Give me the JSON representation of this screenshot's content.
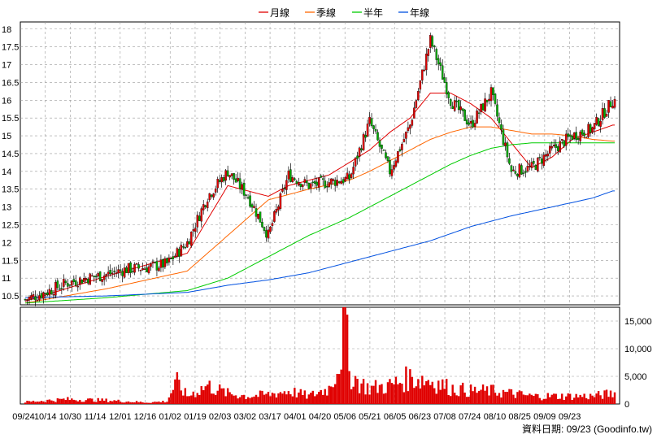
{
  "legend": [
    {
      "label": "月線",
      "color": "#e00000"
    },
    {
      "label": "季線",
      "color": "#ff6600"
    },
    {
      "label": "半年",
      "color": "#00cc00"
    },
    {
      "label": "年線",
      "color": "#0050e0"
    }
  ],
  "credit": "資料日期: 09/23  (Goodinfo.tw)",
  "chart_data": [
    {
      "type": "candlestick",
      "ylim": [
        10.25,
        18.2
      ],
      "y_ticks": [
        "18",
        "17.5",
        "17",
        "16.5",
        "16",
        "15.5",
        "15",
        "14.5",
        "14",
        "13.5",
        "13",
        "12.5",
        "12",
        "11.5",
        "11",
        "10.5"
      ],
      "x_ticks": [
        "09/24",
        "10/14",
        "10/30",
        "11/14",
        "12/01",
        "12/16",
        "01/02",
        "01/19",
        "02/03",
        "03/02",
        "03/17",
        "04/01",
        "04/20",
        "05/06",
        "05/21",
        "06/05",
        "06/23",
        "07/08",
        "07/24",
        "08/10",
        "08/25",
        "09/09",
        "09/23"
      ],
      "up_color": "#e00000",
      "down_color": "#00aa00",
      "price_anchor_index": [
        0,
        10,
        20,
        30,
        40,
        50,
        60,
        70,
        80,
        90,
        100,
        110,
        120,
        130,
        140,
        150,
        160,
        170,
        180,
        190,
        200,
        210,
        220,
        230,
        240
      ],
      "price_anchor_close": [
        10.4,
        10.6,
        10.85,
        11.0,
        11.1,
        11.25,
        11.3,
        11.4,
        12.0,
        13.3,
        14.0,
        13.3,
        12.2,
        13.9,
        13.6,
        13.7,
        13.8,
        15.4,
        14.0,
        15.3,
        17.7,
        16.0,
        15.3,
        16.2,
        14.0
      ],
      "price_anchor_index_2": [
        250,
        260,
        270,
        280,
        290
      ],
      "price_anchor_close_2": [
        14.1,
        14.6,
        15.0,
        15.2,
        16.0
      ],
      "ma_series": [
        {
          "name": "月線",
          "x": [
            0,
            40,
            80,
            100,
            120,
            130,
            150,
            170,
            180,
            190,
            200,
            210,
            220,
            230,
            240,
            250,
            260,
            270,
            280,
            290
          ],
          "y": [
            10.35,
            11.05,
            11.7,
            13.6,
            13.3,
            13.6,
            13.9,
            14.6,
            15.1,
            15.5,
            16.2,
            16.2,
            15.9,
            15.5,
            14.8,
            14.1,
            14.4,
            14.9,
            15.1,
            15.3
          ]
        },
        {
          "name": "季線",
          "x": [
            0,
            40,
            80,
            100,
            120,
            140,
            160,
            170,
            180,
            200,
            210,
            220,
            230,
            240,
            250,
            260,
            270,
            280,
            290
          ],
          "y": [
            10.3,
            10.7,
            11.2,
            12.2,
            13.2,
            13.5,
            13.75,
            14.0,
            14.3,
            14.9,
            15.1,
            15.25,
            15.25,
            15.15,
            15.05,
            15.05,
            15.0,
            14.9,
            14.85
          ]
        },
        {
          "name": "半年",
          "x": [
            0,
            40,
            80,
            100,
            120,
            140,
            160,
            180,
            200,
            210,
            220,
            230,
            240,
            250,
            260,
            270,
            280,
            290
          ],
          "y": [
            10.3,
            10.45,
            10.65,
            11.0,
            11.6,
            12.2,
            12.7,
            13.3,
            13.9,
            14.2,
            14.45,
            14.65,
            14.75,
            14.8,
            14.8,
            14.8,
            14.8,
            14.8
          ]
        },
        {
          "name": "年線",
          "x": [
            0,
            40,
            80,
            100,
            120,
            140,
            160,
            180,
            200,
            220,
            240,
            260,
            280,
            290
          ],
          "y": [
            10.45,
            10.5,
            10.6,
            10.8,
            10.95,
            11.15,
            11.45,
            11.75,
            12.05,
            12.45,
            12.75,
            13.0,
            13.25,
            13.45
          ]
        }
      ]
    },
    {
      "type": "bar",
      "ylim": [
        0,
        17500
      ],
      "y_ticks": [
        "15,000",
        "10,000",
        "5,000",
        "0"
      ],
      "y_values": [
        15000,
        10000,
        5000,
        0
      ],
      "color": "#e00000",
      "volume_anchor_index": [
        0,
        20,
        40,
        60,
        70,
        73,
        75,
        80,
        90,
        100,
        110,
        120,
        130,
        140,
        150,
        155,
        158,
        160,
        165,
        170,
        180,
        190,
        200,
        210,
        220,
        230,
        240,
        250,
        260,
        270,
        280,
        290
      ],
      "volume_anchor_value": [
        400,
        900,
        700,
        300,
        500,
        3000,
        4000,
        1500,
        3500,
        2000,
        1500,
        1800,
        2500,
        1500,
        3000,
        8000,
        16500,
        6000,
        4000,
        3000,
        3500,
        5000,
        4500,
        3000,
        2500,
        2500,
        2000,
        1500,
        1500,
        1500,
        1500,
        2000
      ]
    }
  ]
}
